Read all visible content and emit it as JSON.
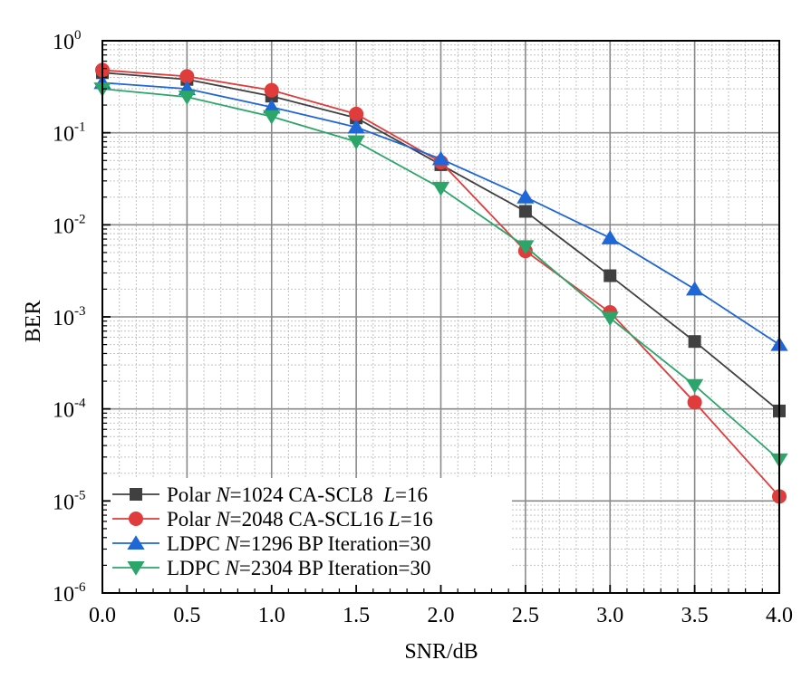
{
  "chart_data": {
    "type": "line",
    "title": "",
    "xlabel": "SNR/dB",
    "ylabel": "BER",
    "xlim": [
      0.0,
      4.0
    ],
    "ylim": [
      1e-06,
      1
    ],
    "yscale": "log",
    "grid": true,
    "legend_position": "bottom-left",
    "x_ticks": [
      "0.0",
      "0.5",
      "1.0",
      "1.5",
      "2.0",
      "2.5",
      "3.0",
      "3.5",
      "4.0"
    ],
    "y_ticks": [
      {
        "base": "10",
        "exp": "0"
      },
      {
        "base": "10",
        "exp": "-1"
      },
      {
        "base": "10",
        "exp": "-2"
      },
      {
        "base": "10",
        "exp": "-3"
      },
      {
        "base": "10",
        "exp": "-4"
      },
      {
        "base": "10",
        "exp": "-5"
      },
      {
        "base": "10",
        "exp": "-6"
      }
    ],
    "series": [
      {
        "legend": [
          {
            "text": "Polar ",
            "italic": false
          },
          {
            "text": "N",
            "italic": true
          },
          {
            "text": "=1024 CA-SCL8  ",
            "italic": false
          },
          {
            "text": "L",
            "italic": true
          },
          {
            "text": "=16",
            "italic": false
          }
        ],
        "color": "#404040",
        "marker": "square",
        "x": [
          0.0,
          0.5,
          1.0,
          1.5,
          2.0,
          2.5,
          3.0,
          3.5,
          4.0
        ],
        "values": [
          0.45,
          0.38,
          0.25,
          0.145,
          0.045,
          0.014,
          0.0028,
          0.00054,
          9.5e-05
        ]
      },
      {
        "legend": [
          {
            "text": "Polar ",
            "italic": false
          },
          {
            "text": "N",
            "italic": true
          },
          {
            "text": "=2048 CA-SCL16 ",
            "italic": false
          },
          {
            "text": "L",
            "italic": true
          },
          {
            "text": "=16",
            "italic": false
          }
        ],
        "color": "#e03c3c",
        "marker": "circle",
        "x": [
          0.0,
          0.5,
          1.0,
          1.5,
          2.0,
          2.5,
          3.0,
          3.5,
          4.0
        ],
        "values": [
          0.48,
          0.41,
          0.29,
          0.16,
          0.048,
          0.0052,
          0.00112,
          0.000118,
          1.12e-05
        ]
      },
      {
        "legend": [
          {
            "text": "LDPC ",
            "italic": false
          },
          {
            "text": "N",
            "italic": true
          },
          {
            "text": "=1296 BP Iteration=30",
            "italic": false
          }
        ],
        "color": "#1f66d6",
        "marker": "triangle-up",
        "x": [
          0.0,
          0.5,
          1.0,
          1.5,
          2.0,
          2.5,
          3.0,
          3.5,
          4.0
        ],
        "values": [
          0.35,
          0.3,
          0.19,
          0.115,
          0.052,
          0.02,
          0.0072,
          0.002,
          0.0005
        ]
      },
      {
        "legend": [
          {
            "text": "LDPC ",
            "italic": false
          },
          {
            "text": "N",
            "italic": true
          },
          {
            "text": "=2304 BP Iteration=30",
            "italic": false
          }
        ],
        "color": "#2ca56b",
        "marker": "triangle-down",
        "x": [
          0.0,
          0.5,
          1.0,
          1.5,
          2.0,
          2.5,
          3.0,
          3.5,
          4.0
        ],
        "values": [
          0.3,
          0.245,
          0.15,
          0.08,
          0.025,
          0.0058,
          0.00097,
          0.00018,
          2.8e-05
        ]
      }
    ]
  }
}
